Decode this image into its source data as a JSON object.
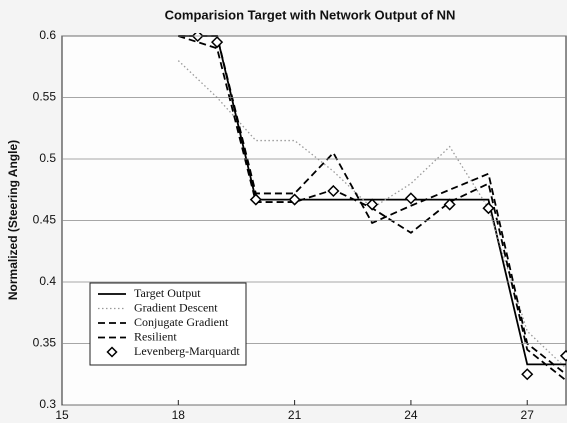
{
  "chart_data": {
    "type": "line",
    "title": "Comparision Target with Network Output of NN",
    "y_label": "Normalized (Steering Angle)",
    "x": [
      18,
      19,
      20,
      21,
      22,
      23,
      24,
      25,
      26,
      27,
      28
    ],
    "xlim": [
      15,
      28
    ],
    "xticks": [
      15,
      18,
      21,
      24,
      27
    ],
    "ylim": [
      0.3,
      0.6
    ],
    "yticks": [
      0.3,
      0.35,
      0.4,
      0.45,
      0.5,
      0.55,
      0.6
    ],
    "grid": true,
    "legend": "lower left",
    "series": [
      {
        "name": "Target Output",
        "color": "#000000",
        "style": "solid",
        "values": [
          0.6,
          0.6,
          0.467,
          0.467,
          0.467,
          0.467,
          0.467,
          0.467,
          0.467,
          0.333,
          0.333
        ]
      },
      {
        "name": "Gradient Descent",
        "color": "#9a9a9a",
        "style": "dotted",
        "values": [
          0.58,
          0.55,
          0.515,
          0.515,
          0.49,
          0.46,
          0.48,
          0.51,
          0.46,
          0.36,
          0.33
        ]
      },
      {
        "name": "Conjugate Gradient",
        "color": "#000000",
        "style": "dashed",
        "values": [
          0.6,
          0.59,
          0.465,
          0.465,
          0.475,
          0.46,
          0.44,
          0.465,
          0.48,
          0.345,
          0.32
        ]
      },
      {
        "name": "Resilient",
        "color": "#000000",
        "style": "dashed",
        "values": [
          0.6,
          0.6,
          0.472,
          0.472,
          0.505,
          0.448,
          0.462,
          0.475,
          0.488,
          0.35,
          0.325
        ]
      },
      {
        "name": "Levenberg-Marquardt",
        "color": "#000000",
        "style": "none",
        "marker": "diamond",
        "x": [
          18.5,
          19,
          20,
          21,
          22,
          23,
          24,
          25,
          26,
          27,
          28
        ],
        "values": [
          0.6,
          0.595,
          0.467,
          0.467,
          0.474,
          0.463,
          0.468,
          0.463,
          0.46,
          0.325,
          0.34
        ]
      }
    ]
  }
}
